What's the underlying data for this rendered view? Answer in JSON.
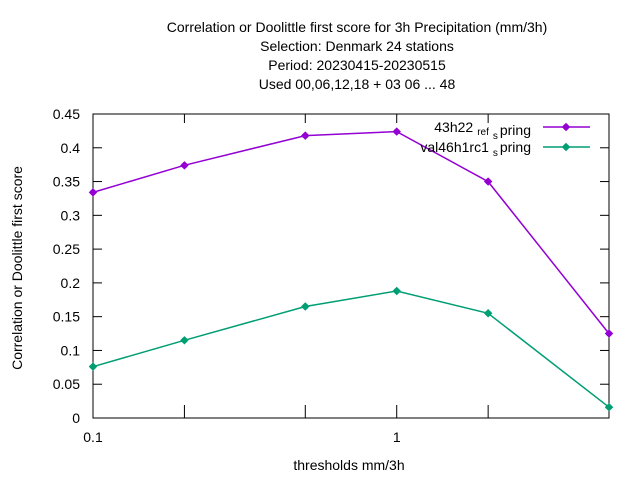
{
  "chart_data": {
    "type": "line",
    "title_lines": [
      "Correlation or Doolittle first score  for 3h Precipitation (mm/3h)",
      "Selection: Denmark     24 stations",
      "Period: 20230415-20230515",
      "Used  00,06,12,18  + 03 06 ... 48"
    ],
    "xlabel": "thresholds mm/3h",
    "ylabel": "Correlation or Doolittle first score",
    "x_scale": "log",
    "xlim": [
      0.1,
      5
    ],
    "ylim": [
      0,
      0.45
    ],
    "x_ticks": [
      {
        "value": 0.1,
        "label": "0.1"
      },
      {
        "value": 0.2,
        "label": ""
      },
      {
        "value": 0.5,
        "label": ""
      },
      {
        "value": 1,
        "label": "1"
      },
      {
        "value": 2,
        "label": ""
      },
      {
        "value": 5,
        "label": ""
      }
    ],
    "y_ticks": [
      {
        "value": 0,
        "label": "0"
      },
      {
        "value": 0.05,
        "label": "0.05"
      },
      {
        "value": 0.1,
        "label": "0.1"
      },
      {
        "value": 0.15,
        "label": "0.15"
      },
      {
        "value": 0.2,
        "label": "0.2"
      },
      {
        "value": 0.25,
        "label": "0.25"
      },
      {
        "value": 0.3,
        "label": "0.3"
      },
      {
        "value": 0.35,
        "label": "0.35"
      },
      {
        "value": 0.4,
        "label": "0.4"
      },
      {
        "value": 0.45,
        "label": "0.45"
      }
    ],
    "grid": false,
    "legend_position": "top-right",
    "x": [
      0.1,
      0.2,
      0.5,
      1,
      2,
      5
    ],
    "series": [
      {
        "name_main": "43h22",
        "name_sub": "ref",
        "name_sub2": "s",
        "name_tail": "pring",
        "color": "#9400d3",
        "values": [
          0.334,
          0.374,
          0.418,
          0.424,
          0.35,
          0.125
        ]
      },
      {
        "name_main": "val46h1rc1",
        "name_sub": "",
        "name_sub2": "s",
        "name_tail": "pring",
        "color": "#009e73",
        "values": [
          0.076,
          0.115,
          0.165,
          0.188,
          0.155,
          0.016
        ]
      }
    ]
  }
}
